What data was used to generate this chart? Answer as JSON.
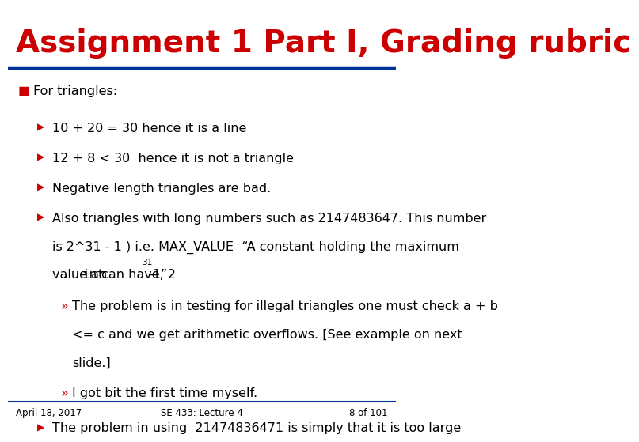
{
  "title": "Assignment 1 Part I, Grading rubric",
  "title_color": "#CC0000",
  "title_fontsize": 28,
  "bg_color": "#FFFFFF",
  "header_line_color": "#003399",
  "bullet_color": "#CC0000",
  "text_color": "#000000",
  "footer_left": "April 18, 2017",
  "footer_center": "SE 433: Lecture 4",
  "footer_right": "8 of 101",
  "footer_color": "#000000",
  "footer_line_color": "#003399",
  "bullet1": "For triangles:",
  "sub1": "10 + 20 = 30 hence it is a line",
  "sub2": "12 + 8 < 30  hence it is not a triangle",
  "sub3": "Negative length triangles are bad.",
  "sub4_line1": "Also triangles with long numbers such as 2147483647. This number",
  "sub4_line2": "is 2^31 - 1 ) i.e. MAX_VALUE  “A constant holding the maximum",
  "sub4_line3": "value an ",
  "sub4_line3_mono": "int",
  "sub4_line3_rest": " can have, 2",
  "sub4_line3_super": "31",
  "sub4_line3_end": "-1”.",
  "subsub1_line1": "The problem is in testing for illegal triangles one must check a + b",
  "subsub1_line2": "<= c and we get arithmetic overflows. [See example on next",
  "subsub1_line3": "slide.]",
  "subsub2": "I got bit the first time myself.",
  "sub5": "The problem in using  21474836471 is simply that it is too large"
}
